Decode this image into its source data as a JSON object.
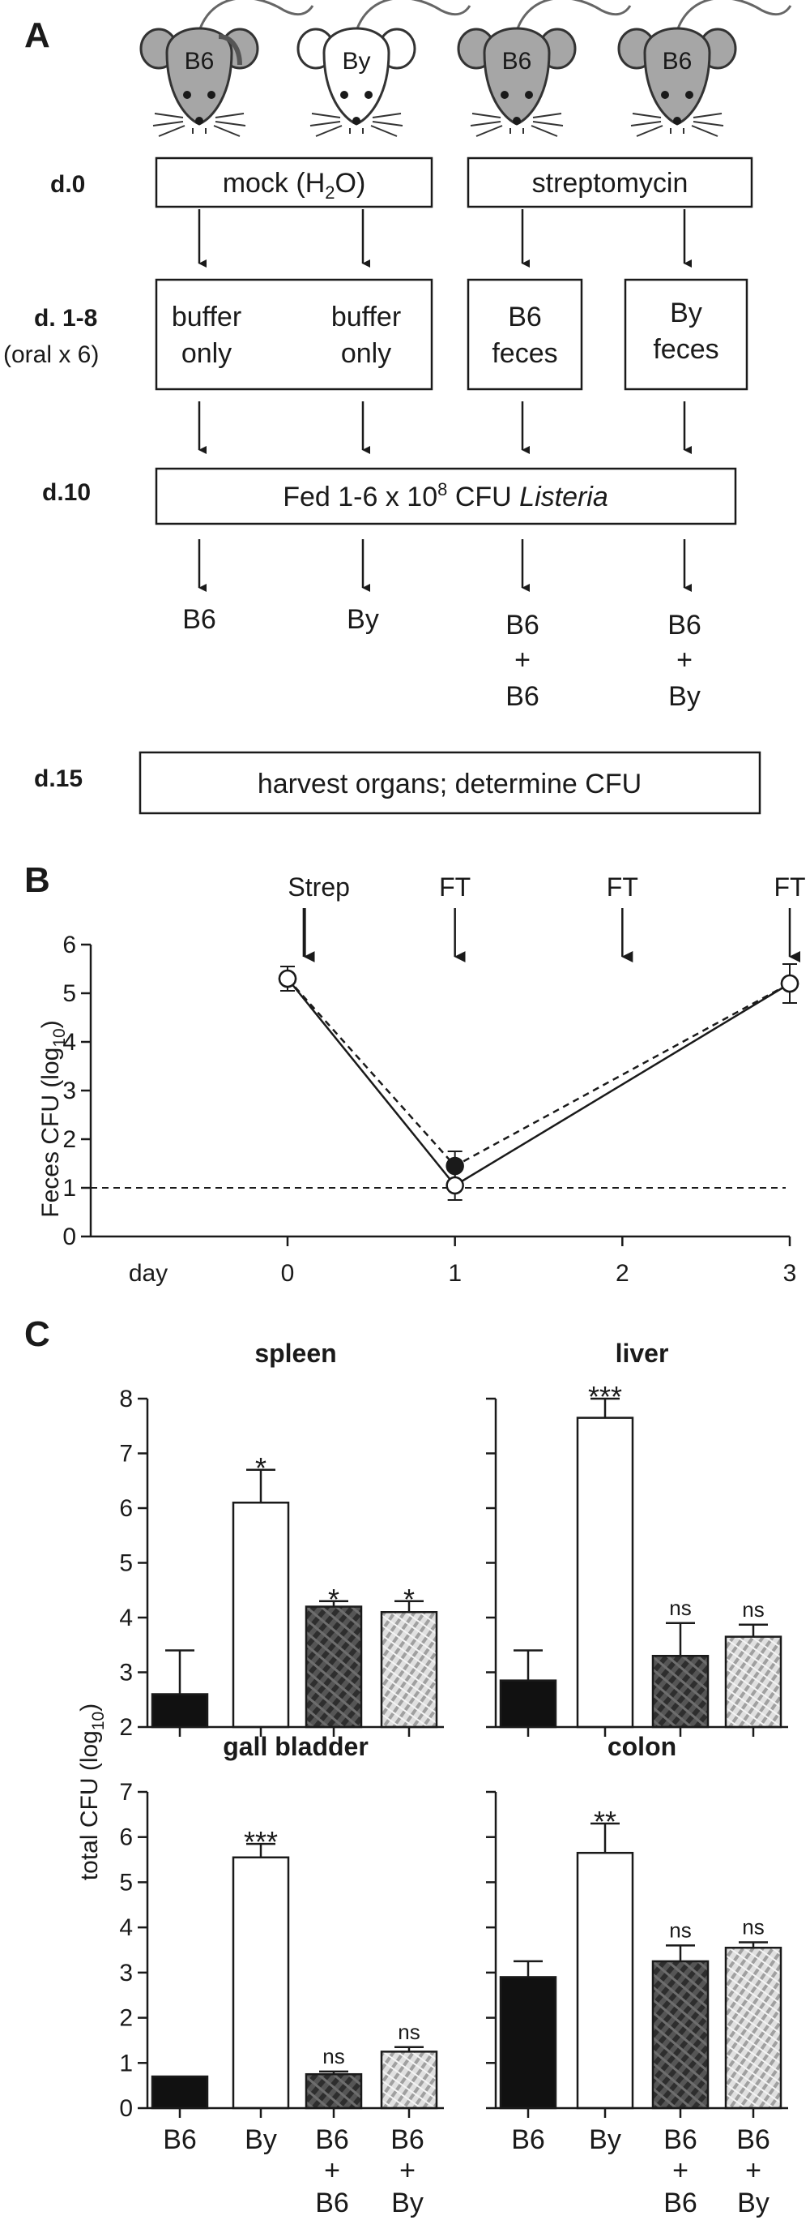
{
  "panel_a": {
    "letter": "A",
    "mice": [
      "B6",
      "By",
      "B6",
      "B6"
    ],
    "days": {
      "d0": "d.0",
      "d18": "d. 1-8",
      "d18_sub": "(oral x 6)",
      "d10": "d.10",
      "d15": "d.15"
    },
    "boxes": {
      "mock_main": "mock (H",
      "mock_sub": "2",
      "mock_end": "O)",
      "strep": "streptomycin",
      "buffer_line1": "buffer",
      "buffer_line2": "only",
      "b6_feces_line1": "B6",
      "b6_feces_line2": "feces",
      "by_feces_line1": "By",
      "by_feces_line2": "feces",
      "fed_main": "Fed 1-6 x 10",
      "fed_sup": "8",
      "fed_unit": " CFU ",
      "fed_italic": "Listeria",
      "harvest": "harvest organs; determine CFU"
    },
    "groups": [
      {
        "line1": "B6",
        "line2": "",
        "line3": ""
      },
      {
        "line1": "By",
        "line2": "",
        "line3": ""
      },
      {
        "line1": "B6",
        "line2": "+",
        "line3": "B6"
      },
      {
        "line1": "B6",
        "line2": "+",
        "line3": "By"
      }
    ]
  },
  "panel_b": {
    "letter": "B",
    "ylabel_main": "Feces CFU (log",
    "ylabel_sub": "10",
    "ylabel_end": ")",
    "xlabel": "day",
    "annotations": [
      "Strep",
      "FT",
      "FT",
      "FT"
    ]
  },
  "panel_c": {
    "letter": "C",
    "ylabel_main": "total CFU (log",
    "ylabel_sub": "10",
    "ylabel_end": ")",
    "x_groups": [
      {
        "line1": "B6",
        "line2": "",
        "line3": ""
      },
      {
        "line1": "By",
        "line2": "",
        "line3": ""
      },
      {
        "line1": "B6",
        "line2": "+",
        "line3": "B6"
      },
      {
        "line1": "B6",
        "line2": "+",
        "line3": "By"
      }
    ]
  },
  "chart_data": [
    {
      "type": "line",
      "title": "",
      "xlabel": "day",
      "ylabel": "Feces CFU (log10)",
      "x": [
        0,
        1,
        3
      ],
      "xticks": [
        0,
        1,
        2,
        3
      ],
      "ylim": [
        0,
        6
      ],
      "yticks": [
        0,
        1,
        2,
        3,
        4,
        5,
        6
      ],
      "series": [
        {
          "style": "solid",
          "marker": "open-circle",
          "values": [
            5.3,
            1.05,
            5.2
          ],
          "err": [
            0.25,
            0.3,
            0.4
          ]
        },
        {
          "style": "dashed",
          "marker": "filled-circle",
          "values": [
            5.3,
            1.45,
            5.2
          ],
          "err": [
            0.25,
            0.3,
            0.4
          ]
        }
      ],
      "reference_line": {
        "y": 1,
        "style": "dashed"
      },
      "event_days": [
        0.1,
        1,
        2,
        3
      ]
    },
    {
      "type": "bar",
      "title": "spleen",
      "ylim": [
        2,
        8
      ],
      "yticks": [
        2,
        3,
        4,
        5,
        6,
        7,
        8
      ],
      "categories": [
        "B6",
        "By",
        "B6+B6",
        "B6+By"
      ],
      "values": [
        2.6,
        6.1,
        4.2,
        4.1
      ],
      "err": [
        0.8,
        0.6,
        0.1,
        0.2
      ],
      "significance": [
        "",
        "*",
        "*",
        "*"
      ]
    },
    {
      "type": "bar",
      "title": "liver",
      "ylim": [
        2,
        8
      ],
      "yticks": [
        2,
        3,
        4,
        5,
        6,
        7,
        8
      ],
      "categories": [
        "B6",
        "By",
        "B6+B6",
        "B6+By"
      ],
      "values": [
        2.85,
        7.65,
        3.3,
        3.65
      ],
      "err": [
        0.55,
        0.35,
        0.6,
        0.22
      ],
      "significance": [
        "",
        "***",
        "ns",
        "ns"
      ]
    },
    {
      "type": "bar",
      "title": "gall bladder",
      "ylim": [
        0,
        7
      ],
      "yticks": [
        0,
        1,
        2,
        3,
        4,
        5,
        6,
        7
      ],
      "categories": [
        "B6",
        "By",
        "B6+B6",
        "B6+By"
      ],
      "values": [
        0.7,
        5.55,
        0.75,
        1.25
      ],
      "err": [
        0,
        0.3,
        0.06,
        0.1
      ],
      "significance": [
        "",
        "***",
        "ns",
        "ns"
      ]
    },
    {
      "type": "bar",
      "title": "colon",
      "ylim": [
        0,
        7
      ],
      "yticks": [
        0,
        1,
        2,
        3,
        4,
        5,
        6,
        7
      ],
      "categories": [
        "B6",
        "By",
        "B6+B6",
        "B6+By"
      ],
      "values": [
        2.9,
        5.65,
        3.25,
        3.55
      ],
      "err": [
        0.35,
        0.65,
        0.35,
        0.12
      ],
      "significance": [
        "",
        "**",
        "ns",
        "ns"
      ]
    }
  ]
}
